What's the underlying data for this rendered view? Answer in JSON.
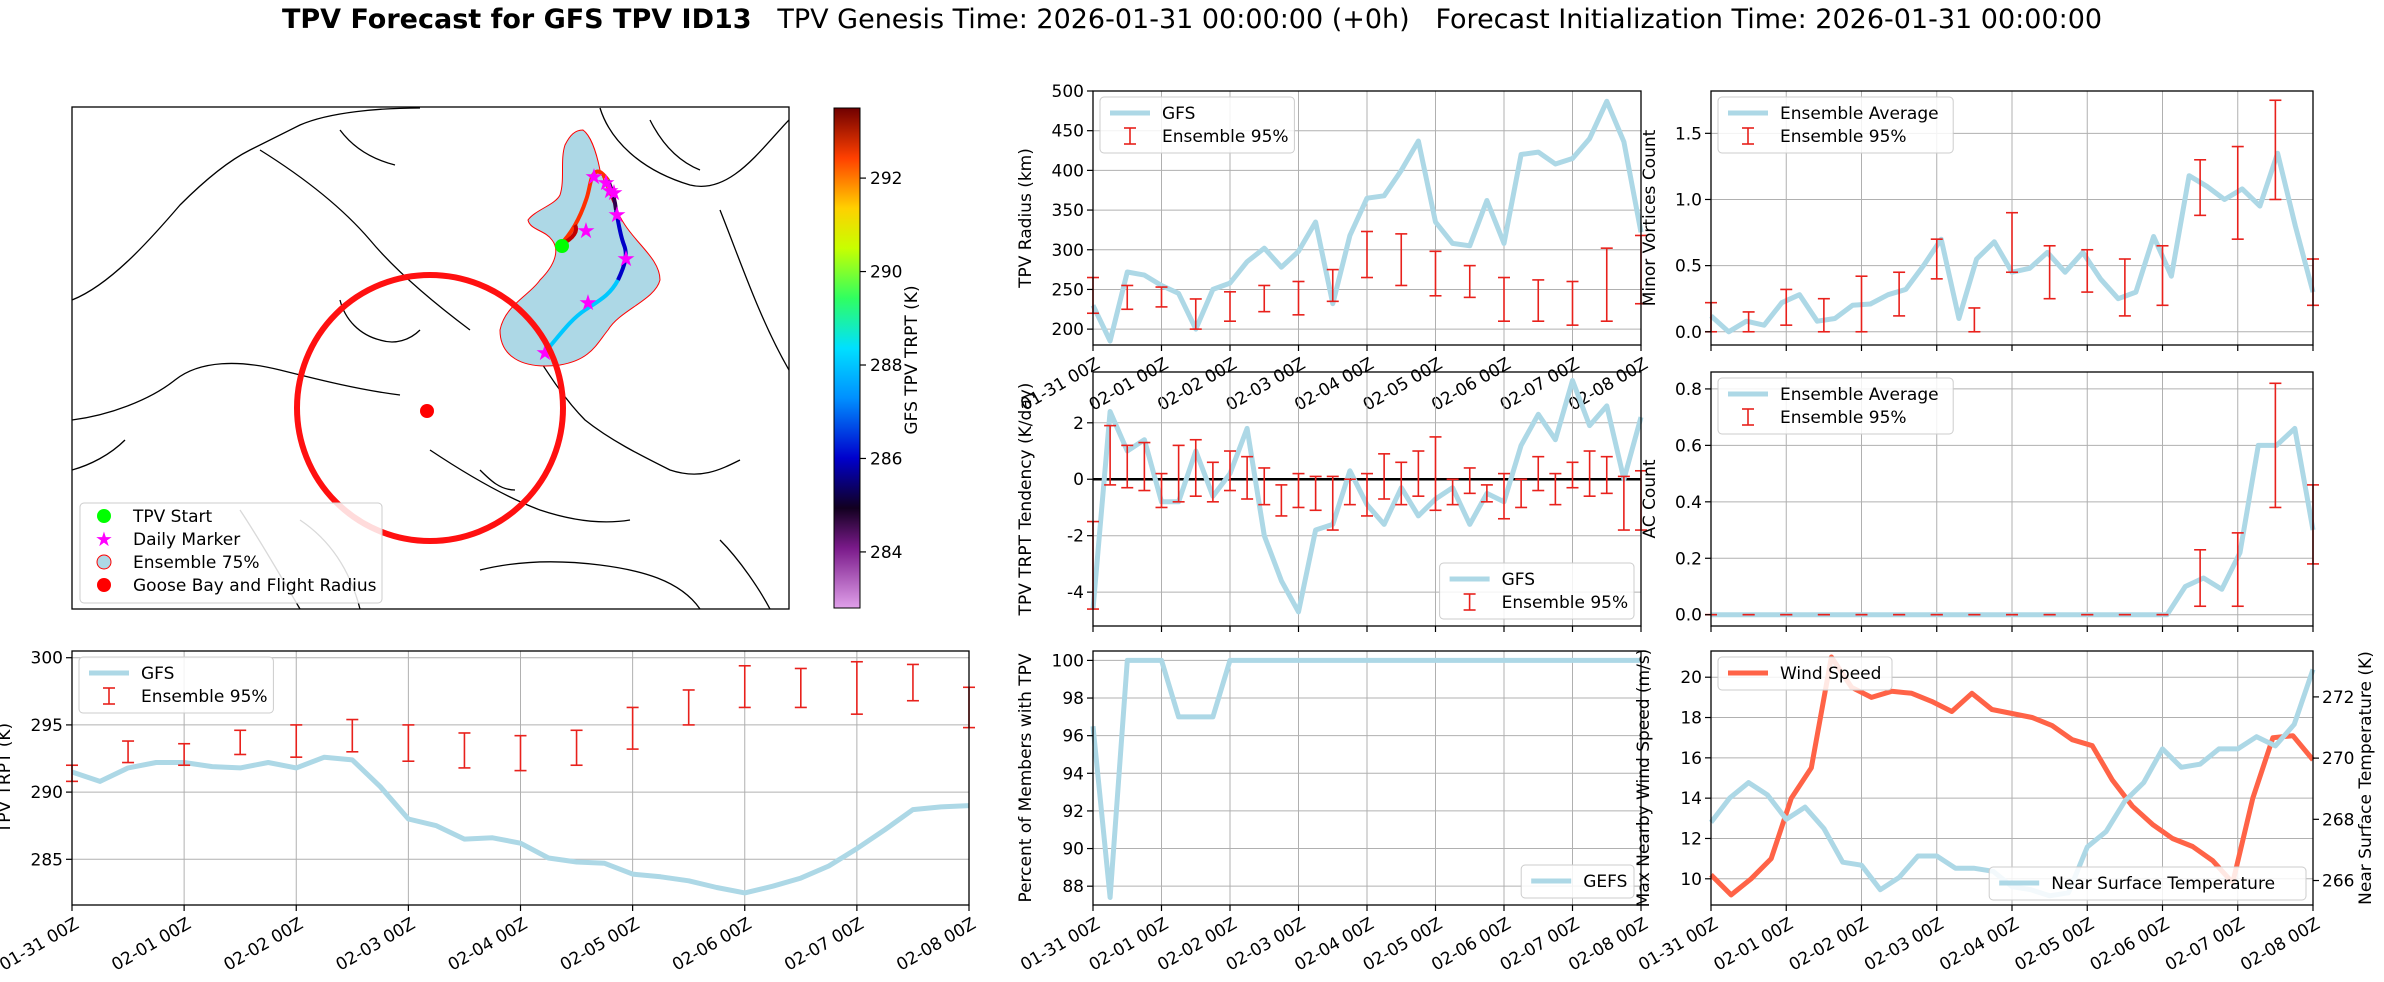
{
  "title": {
    "bold": "TPV Forecast for GFS TPV ID13",
    "genesis": "TPV Genesis Time: 2026-01-31 00:00:00 (+0h)",
    "init": "Forecast Initialization Time: 2026-01-31 00:00:00"
  },
  "x_ticks": [
    "01-31 00Z",
    "02-01 00Z",
    "02-02 00Z",
    "02-03 00Z",
    "02-04 00Z",
    "02-05 00Z",
    "02-06 00Z",
    "02-07 00Z",
    "02-08 00Z"
  ],
  "colors": {
    "gfs": "#add8e6",
    "ens": "#e8211c",
    "wind": "#ff6347",
    "temp_axis": "#4169e1",
    "zero": "#000000"
  },
  "map": {
    "legend": [
      "TPV Start",
      "Daily Marker",
      "Ensemble 75%",
      "Goose Bay and Flight Radius"
    ],
    "colorbar_label": "GFS TPV TRPT (K)",
    "colorbar_ticks": [
      284,
      286,
      288,
      290,
      292
    ],
    "colorbar_range": [
      282.8,
      293.5
    ]
  },
  "chart_data": [
    {
      "id": "radius",
      "type": "line",
      "ylabel": "TPV Radius (km)",
      "ylim": [
        180,
        500
      ],
      "yticks": [
        200,
        250,
        300,
        350,
        400,
        450,
        500
      ],
      "legend": [
        "GFS",
        "Ensemble 95%"
      ],
      "series": [
        {
          "name": "GFS",
          "values": [
            230,
            185,
            272,
            268,
            255,
            245,
            200,
            250,
            258,
            285,
            302,
            278,
            298,
            335,
            232,
            318,
            365,
            368,
            400,
            437,
            335,
            308,
            305,
            362,
            308,
            420,
            423,
            408,
            415,
            440,
            487,
            436,
            322
          ]
        }
      ],
      "errorbars": [
        {
          "t": 0,
          "lo": 220,
          "hi": 265
        },
        {
          "t": 2,
          "lo": 225,
          "hi": 255
        },
        {
          "t": 4,
          "lo": 228,
          "hi": 253
        },
        {
          "t": 6,
          "lo": 200,
          "hi": 238
        },
        {
          "t": 8,
          "lo": 210,
          "hi": 247
        },
        {
          "t": 10,
          "lo": 222,
          "hi": 255
        },
        {
          "t": 12,
          "lo": 218,
          "hi": 260
        },
        {
          "t": 14,
          "lo": 235,
          "hi": 275
        },
        {
          "t": 16,
          "lo": 265,
          "hi": 323
        },
        {
          "t": 18,
          "lo": 255,
          "hi": 320
        },
        {
          "t": 20,
          "lo": 242,
          "hi": 298
        },
        {
          "t": 22,
          "lo": 240,
          "hi": 280
        },
        {
          "t": 24,
          "lo": 210,
          "hi": 265
        },
        {
          "t": 26,
          "lo": 210,
          "hi": 262
        },
        {
          "t": 28,
          "lo": 205,
          "hi": 260
        },
        {
          "t": 30,
          "lo": 210,
          "hi": 302
        },
        {
          "t": 32,
          "lo": 232,
          "hi": 318
        }
      ]
    },
    {
      "id": "minor",
      "type": "line",
      "ylabel": "Minor Vortices Count",
      "ylim": [
        -0.1,
        1.82
      ],
      "yticks": [
        0.0,
        0.5,
        1.0,
        1.5
      ],
      "legend": [
        "Ensemble Average",
        "Ensemble 95%"
      ],
      "series": [
        {
          "name": "Ensemble Average",
          "values": [
            0.12,
            0.0,
            0.08,
            0.05,
            0.22,
            0.28,
            0.08,
            0.1,
            0.2,
            0.21,
            0.28,
            0.32,
            0.5,
            0.7,
            0.1,
            0.55,
            0.68,
            0.45,
            0.48,
            0.6,
            0.45,
            0.6,
            0.4,
            0.25,
            0.3,
            0.72,
            0.42,
            1.18,
            1.1,
            1.0,
            1.08,
            0.95,
            1.35,
            0.8,
            0.3
          ]
        }
      ],
      "errorbars": [
        {
          "t": 0,
          "lo": 0.0,
          "hi": 0.22
        },
        {
          "t": 2,
          "lo": 0.0,
          "hi": 0.15
        },
        {
          "t": 4,
          "lo": 0.05,
          "hi": 0.32
        },
        {
          "t": 6,
          "lo": 0.0,
          "hi": 0.25
        },
        {
          "t": 8,
          "lo": 0.0,
          "hi": 0.42
        },
        {
          "t": 10,
          "lo": 0.12,
          "hi": 0.45
        },
        {
          "t": 12,
          "lo": 0.4,
          "hi": 0.7
        },
        {
          "t": 14,
          "lo": 0.0,
          "hi": 0.18
        },
        {
          "t": 16,
          "lo": 0.45,
          "hi": 0.9
        },
        {
          "t": 18,
          "lo": 0.25,
          "hi": 0.65
        },
        {
          "t": 20,
          "lo": 0.3,
          "hi": 0.62
        },
        {
          "t": 22,
          "lo": 0.12,
          "hi": 0.55
        },
        {
          "t": 24,
          "lo": 0.2,
          "hi": 0.65
        },
        {
          "t": 26,
          "lo": 0.88,
          "hi": 1.3
        },
        {
          "t": 28,
          "lo": 0.7,
          "hi": 1.4
        },
        {
          "t": 30,
          "lo": 1.0,
          "hi": 1.75
        },
        {
          "t": 32,
          "lo": 0.2,
          "hi": 0.55
        }
      ]
    },
    {
      "id": "tendency",
      "type": "line",
      "ylabel": "TPV TRPT Tendency (K/day)",
      "ylim": [
        -5.2,
        3.8
      ],
      "yticks": [
        -4,
        -2,
        0,
        2
      ],
      "legend": [
        "GFS",
        "Ensemble 95%"
      ],
      "series": [
        {
          "name": "GFS",
          "values": [
            -4.6,
            2.4,
            1.0,
            1.4,
            -0.8,
            -0.8,
            1.0,
            -0.6,
            0.2,
            1.8,
            -2.0,
            -3.6,
            -4.7,
            -1.8,
            -1.6,
            0.3,
            -0.9,
            -1.6,
            -0.3,
            -1.3,
            -0.7,
            -0.3,
            -1.6,
            -0.5,
            -0.8,
            1.2,
            2.3,
            1.4,
            3.5,
            1.9,
            2.6,
            0.0,
            2.2
          ]
        }
      ],
      "errorbars": [
        {
          "t": 0,
          "lo": -4.6,
          "hi": -1.5
        },
        {
          "t": 1,
          "lo": -0.2,
          "hi": 1.9
        },
        {
          "t": 2,
          "lo": -0.3,
          "hi": 1.2
        },
        {
          "t": 3,
          "lo": -0.4,
          "hi": 1.3
        },
        {
          "t": 4,
          "lo": -1.0,
          "hi": 0.2
        },
        {
          "t": 5,
          "lo": -0.8,
          "hi": 1.2
        },
        {
          "t": 6,
          "lo": -0.6,
          "hi": 1.4
        },
        {
          "t": 7,
          "lo": -0.8,
          "hi": 0.6
        },
        {
          "t": 8,
          "lo": -0.4,
          "hi": 1.0
        },
        {
          "t": 9,
          "lo": -0.7,
          "hi": 0.8
        },
        {
          "t": 10,
          "lo": -0.9,
          "hi": 0.4
        },
        {
          "t": 11,
          "lo": -1.3,
          "hi": -0.2
        },
        {
          "t": 12,
          "lo": -1.0,
          "hi": 0.2
        },
        {
          "t": 13,
          "lo": -1.1,
          "hi": 0.1
        },
        {
          "t": 14,
          "lo": -1.8,
          "hi": 0.1
        },
        {
          "t": 15,
          "lo": -0.9,
          "hi": 0.0
        },
        {
          "t": 16,
          "lo": -1.3,
          "hi": 0.2
        },
        {
          "t": 17,
          "lo": -0.7,
          "hi": 0.9
        },
        {
          "t": 18,
          "lo": -0.9,
          "hi": 0.6
        },
        {
          "t": 19,
          "lo": -0.6,
          "hi": 1.0
        },
        {
          "t": 20,
          "lo": -1.1,
          "hi": 1.5
        },
        {
          "t": 21,
          "lo": -0.9,
          "hi": 0.0
        },
        {
          "t": 22,
          "lo": -0.5,
          "hi": 0.4
        },
        {
          "t": 23,
          "lo": -0.8,
          "hi": -0.2
        },
        {
          "t": 24,
          "lo": -1.4,
          "hi": 0.2
        },
        {
          "t": 25,
          "lo": -1.0,
          "hi": 0.0
        },
        {
          "t": 26,
          "lo": -0.4,
          "hi": 0.8
        },
        {
          "t": 27,
          "lo": -0.9,
          "hi": 0.2
        },
        {
          "t": 28,
          "lo": -0.3,
          "hi": 0.6
        },
        {
          "t": 29,
          "lo": -0.6,
          "hi": 1.0
        },
        {
          "t": 30,
          "lo": -0.5,
          "hi": 0.8
        },
        {
          "t": 31,
          "lo": -1.8,
          "hi": 0.1
        },
        {
          "t": 32,
          "lo": -1.8,
          "hi": 0.3
        }
      ]
    },
    {
      "id": "ac",
      "type": "line",
      "ylabel": "AC Count",
      "ylim": [
        -0.04,
        0.86
      ],
      "yticks": [
        0.0,
        0.2,
        0.4,
        0.6,
        0.8
      ],
      "legend": [
        "Ensemble Average",
        "Ensemble 95%"
      ],
      "series": [
        {
          "name": "Ensemble Average",
          "values": [
            0,
            0,
            0,
            0,
            0,
            0,
            0,
            0,
            0,
            0,
            0,
            0,
            0,
            0,
            0,
            0,
            0,
            0,
            0,
            0,
            0,
            0,
            0,
            0,
            0,
            0,
            0.1,
            0.13,
            0.09,
            0.22,
            0.6,
            0.6,
            0.66,
            0.3
          ]
        }
      ],
      "errorbars": [
        {
          "t": 0,
          "lo": 0,
          "hi": 0
        },
        {
          "t": 2,
          "lo": 0,
          "hi": 0
        },
        {
          "t": 4,
          "lo": 0,
          "hi": 0
        },
        {
          "t": 6,
          "lo": 0,
          "hi": 0
        },
        {
          "t": 8,
          "lo": 0,
          "hi": 0
        },
        {
          "t": 10,
          "lo": 0,
          "hi": 0
        },
        {
          "t": 12,
          "lo": 0,
          "hi": 0
        },
        {
          "t": 14,
          "lo": 0,
          "hi": 0
        },
        {
          "t": 16,
          "lo": 0,
          "hi": 0
        },
        {
          "t": 18,
          "lo": 0,
          "hi": 0
        },
        {
          "t": 20,
          "lo": 0,
          "hi": 0
        },
        {
          "t": 22,
          "lo": 0,
          "hi": 0
        },
        {
          "t": 24,
          "lo": 0,
          "hi": 0
        },
        {
          "t": 26,
          "lo": 0.03,
          "hi": 0.23
        },
        {
          "t": 28,
          "lo": 0.03,
          "hi": 0.29
        },
        {
          "t": 30,
          "lo": 0.38,
          "hi": 0.82
        },
        {
          "t": 32,
          "lo": 0.18,
          "hi": 0.46
        }
      ]
    },
    {
      "id": "trpt",
      "type": "line",
      "ylabel": "TPV TRPT (K)",
      "ylim": [
        281.6,
        300.5
      ],
      "yticks": [
        285,
        290,
        295,
        300
      ],
      "legend": [
        "GFS",
        "Ensemble 95%"
      ],
      "series": [
        {
          "name": "GFS",
          "values": [
            291.5,
            290.8,
            291.8,
            292.2,
            292.2,
            291.9,
            291.8,
            292.2,
            291.8,
            292.6,
            292.4,
            290.4,
            288.0,
            287.5,
            286.5,
            286.6,
            286.2,
            285.1,
            284.8,
            284.7,
            283.9,
            283.7,
            283.4,
            282.9,
            282.5,
            283.0,
            283.6,
            284.5,
            285.8,
            287.2,
            288.7,
            288.9,
            289.0
          ]
        }
      ],
      "errorbars": [
        {
          "t": 0,
          "lo": 290.8,
          "hi": 292.0
        },
        {
          "t": 2,
          "lo": 292.2,
          "hi": 293.8
        },
        {
          "t": 4,
          "lo": 292.0,
          "hi": 293.6
        },
        {
          "t": 6,
          "lo": 292.8,
          "hi": 294.6
        },
        {
          "t": 8,
          "lo": 292.6,
          "hi": 295.0
        },
        {
          "t": 10,
          "lo": 293.0,
          "hi": 295.4
        },
        {
          "t": 12,
          "lo": 292.3,
          "hi": 295.0
        },
        {
          "t": 14,
          "lo": 291.8,
          "hi": 294.4
        },
        {
          "t": 16,
          "lo": 291.6,
          "hi": 294.2
        },
        {
          "t": 18,
          "lo": 292.0,
          "hi": 294.6
        },
        {
          "t": 20,
          "lo": 293.2,
          "hi": 296.3
        },
        {
          "t": 22,
          "lo": 295.0,
          "hi": 297.6
        },
        {
          "t": 24,
          "lo": 296.3,
          "hi": 299.4
        },
        {
          "t": 26,
          "lo": 296.3,
          "hi": 299.2
        },
        {
          "t": 28,
          "lo": 295.8,
          "hi": 299.7
        },
        {
          "t": 30,
          "lo": 296.8,
          "hi": 299.5
        },
        {
          "t": 32,
          "lo": 294.8,
          "hi": 297.8
        }
      ]
    },
    {
      "id": "percent",
      "type": "line",
      "ylabel": "Percent of Members with TPV",
      "ylim": [
        87.0,
        100.5
      ],
      "yticks": [
        88,
        90,
        92,
        94,
        96,
        98,
        100
      ],
      "legend": [
        "GEFS"
      ],
      "series": [
        {
          "name": "GEFS",
          "values": [
            96.5,
            87.4,
            100,
            100,
            100,
            97,
            97,
            97,
            100,
            100,
            100,
            100,
            100,
            100,
            100,
            100,
            100,
            100,
            100,
            100,
            100,
            100,
            100,
            100,
            100,
            100,
            100,
            100,
            100,
            100,
            100,
            100,
            100
          ]
        }
      ],
      "errorbars": []
    },
    {
      "id": "wind",
      "type": "line",
      "ylabel": "Max Nearby Wind Speed (m/s)",
      "ylabel_right": "Near Surface Temperature (K)",
      "ylim": [
        8.7,
        21.3
      ],
      "yticks": [
        10,
        12,
        14,
        16,
        18,
        20
      ],
      "ylim_right": [
        265.2,
        273.5
      ],
      "yticks_right": [
        266,
        268,
        270,
        272
      ],
      "legend": [
        "Wind Speed",
        "Near Surface Temperature"
      ],
      "series": [
        {
          "name": "Wind Speed",
          "axis": "left",
          "values": [
            10.2,
            9.2,
            10.0,
            11.0,
            14.0,
            15.5,
            21.0,
            19.5,
            19.0,
            19.3,
            19.2,
            18.8,
            18.3,
            19.2,
            18.4,
            18.2,
            18.0,
            17.6,
            16.9,
            16.6,
            14.9,
            13.6,
            12.7,
            12.0,
            11.6,
            10.9,
            9.8,
            14.0,
            17.0,
            17.1,
            15.9
          ]
        },
        {
          "name": "Near Surface Temperature",
          "axis": "right",
          "values": [
            267.9,
            268.7,
            269.2,
            268.8,
            268.0,
            268.4,
            267.7,
            266.6,
            266.5,
            265.7,
            266.1,
            266.8,
            266.8,
            266.4,
            266.4,
            266.3,
            265.8,
            265.7,
            265.5,
            265.6,
            267.1,
            267.6,
            268.6,
            269.2,
            270.3,
            269.7,
            269.8,
            270.3,
            270.3,
            270.7,
            270.4,
            271.1,
            272.9
          ]
        }
      ]
    }
  ]
}
